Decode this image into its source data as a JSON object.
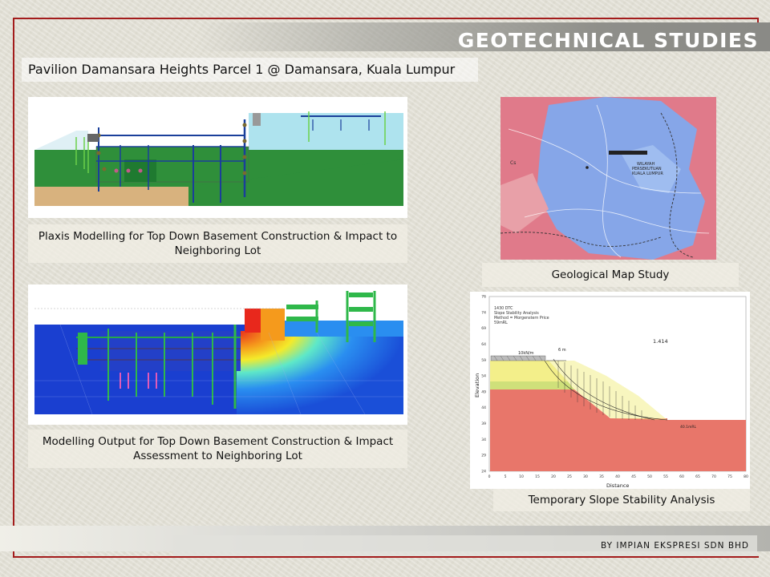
{
  "header": {
    "title": "GEOTECHNICAL STUDIES"
  },
  "project": {
    "title": "Pavilion Damansara Heights Parcel 1 @ Damansara, Kuala Lumpur"
  },
  "figures": {
    "plaxis_model": {
      "caption": "Plaxis Modelling for Top Down Basement  Construction & Impact to Neighboring Lot"
    },
    "modelling_output": {
      "caption": "Modelling Output for Top Down Basement  Construction & Impact Assessment to Neighboring Lot"
    },
    "geological_map": {
      "caption": "Geological Map Study",
      "map_label_line1": "WILAYAH",
      "map_label_line2": "PERSEKUTUAN",
      "map_label_line3": "KUALA LUMPUR",
      "map_code": "Cs"
    },
    "slope_stability": {
      "caption": "Temporary Slope Stability Analysis",
      "info_line1": "1430 DTC",
      "info_line2": "Slope Stability Analysis",
      "info_line3": "Method = Morgenstern Price",
      "info_line4": "59mRL",
      "factor_of_safety": "1.414",
      "load_label": "10kN/m",
      "offset_label": "6 m",
      "toe_label": "40.1mRL",
      "ylabel": "Elevation",
      "xlabel": "Distance",
      "y_ticks": [
        "76",
        "74",
        "69",
        "64",
        "59",
        "54",
        "49",
        "44",
        "39",
        "34",
        "29",
        "24"
      ],
      "x_ticks": [
        "0",
        "5",
        "10",
        "15",
        "20",
        "25",
        "30",
        "35",
        "40",
        "45",
        "50",
        "55",
        "60",
        "65",
        "70",
        "75",
        "80"
      ]
    }
  },
  "footer": {
    "credit": "BY IMPIAN EKSPRESI SDN BHD"
  },
  "colors": {
    "frame": "#a31c1c",
    "soil_green": "#2f8f3a",
    "soil_tan": "#d8b27e",
    "water_blue": "#aee3ee",
    "map_pink": "#e07a8a",
    "map_blue": "#86a6e8",
    "slope_yellow": "#f3ef8a",
    "slope_red": "#e8766a"
  }
}
